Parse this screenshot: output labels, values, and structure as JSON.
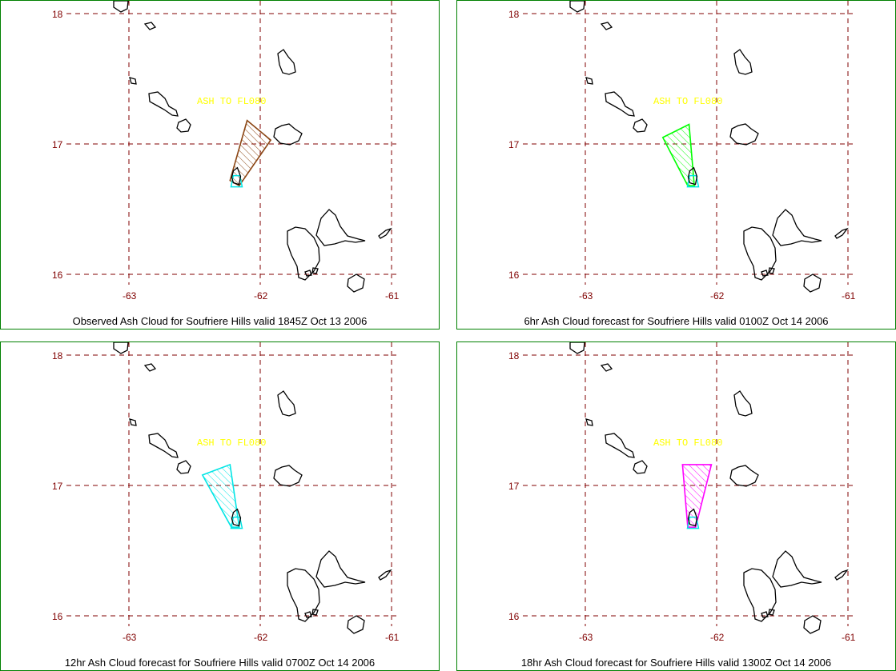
{
  "panels": [
    {
      "caption": "Observed Ash Cloud for Soufriere  Hills valid 1845Z Oct 13 2006",
      "annotation": "ASH TO FL080",
      "cloud_color": "#8b4513",
      "cloud": [
        [
          -62.1,
          17.18
        ],
        [
          -61.92,
          17.03
        ],
        [
          -62.16,
          16.68
        ],
        [
          -62.23,
          16.72
        ]
      ]
    },
    {
      "caption": "6hr Ash Cloud forecast for Soufriere  Hills valid 0100Z Oct 14 2006",
      "annotation": "ASH TO FL080",
      "cloud_color": "#00ff00",
      "cloud": [
        [
          -62.41,
          17.05
        ],
        [
          -62.21,
          17.15
        ],
        [
          -62.17,
          16.68
        ],
        [
          -62.22,
          16.68
        ]
      ]
    },
    {
      "caption": "12hr Ash Cloud forecast for Soufriere  Hills valid 0700Z Oct 14 2006",
      "annotation": "ASH TO FL080",
      "cloud_color": "#00e5e5",
      "cloud": [
        [
          -62.44,
          17.08
        ],
        [
          -62.23,
          17.16
        ],
        [
          -62.16,
          16.68
        ],
        [
          -62.22,
          16.68
        ]
      ]
    },
    {
      "caption": "18hr Ash Cloud forecast for Soufriere  Hills valid 1300Z Oct 14 2006",
      "annotation": "ASH TO FL080",
      "cloud_color": "#ff00ff",
      "cloud": [
        [
          -62.26,
          17.16
        ],
        [
          -62.04,
          17.16
        ],
        [
          -62.16,
          16.68
        ],
        [
          -62.22,
          16.68
        ]
      ]
    }
  ],
  "axes": {
    "lon_ticks": [
      -63,
      -62,
      -61
    ],
    "lat_ticks": [
      18,
      17,
      16
    ],
    "lon_labels": [
      "-63",
      "-62",
      "-61"
    ],
    "lat_labels": [
      "18",
      "17",
      "16"
    ]
  },
  "colors": {
    "frame": "#008000",
    "grid": "#800000",
    "coast": "#000000",
    "volcano": "#00e5e5",
    "annotation": "#ffff00"
  }
}
